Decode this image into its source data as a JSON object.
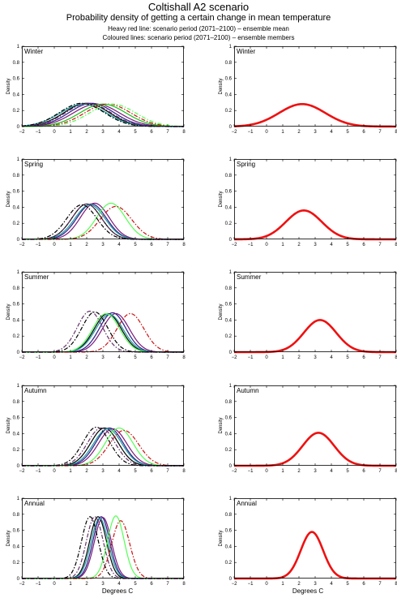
{
  "header": {
    "title": "Coltishall A2 scenario",
    "subtitle": "Probability density of getting a certain change in mean temperature",
    "note_red": "Heavy red line: scenario period (2071–2100) – ensemble mean",
    "note_coloured": "Coloured lines: scenario period (2071–2100) – ensemble members"
  },
  "colors": {
    "mean_line": "#ee1111",
    "members": [
      "#000000",
      "#2b1a8a",
      "#7a1a7a",
      "#18c018",
      "#55ff55",
      "#cc1111",
      "#1a9a9a",
      "#66336a"
    ]
  },
  "axes": {
    "xlabel": "Degrees C",
    "ylabel": "Density",
    "x_ticks": [
      "−2",
      "−1",
      "0",
      "1",
      "2",
      "3",
      "4",
      "5",
      "6",
      "7",
      "8"
    ],
    "y_ticks": [
      "0",
      "0.2",
      "0.4",
      "0.6",
      "0.8",
      "1"
    ]
  },
  "chart_data": [
    {
      "type": "line",
      "season": "Winter",
      "panel": "ensemble members",
      "xlim": [
        -2,
        8
      ],
      "ylim": [
        0,
        1
      ],
      "series": [
        {
          "style": "solid",
          "color": "#000000",
          "mean": 2.0,
          "peak": 0.29
        },
        {
          "style": "solid",
          "color": "#2b1a8a",
          "mean": 2.3,
          "peak": 0.29
        },
        {
          "style": "solid",
          "color": "#7a1a7a",
          "mean": 2.6,
          "peak": 0.28
        },
        {
          "style": "solid",
          "color": "#18c018",
          "mean": 3.0,
          "peak": 0.28
        },
        {
          "style": "solid",
          "color": "#1a9a9a",
          "mean": 1.8,
          "peak": 0.28
        },
        {
          "style": "dashdot",
          "color": "#cc1111",
          "mean": 3.3,
          "peak": 0.28
        },
        {
          "style": "dashdot",
          "color": "#55ff55",
          "mean": 3.6,
          "peak": 0.28
        },
        {
          "style": "dashdot",
          "color": "#000000",
          "mean": 1.7,
          "peak": 0.29
        },
        {
          "style": "dashdot",
          "color": "#66336a",
          "mean": 2.1,
          "peak": 0.29
        }
      ]
    },
    {
      "type": "line",
      "season": "Winter",
      "panel": "ensemble mean",
      "xlim": [
        -2,
        8
      ],
      "ylim": [
        0,
        1
      ],
      "series": [
        {
          "style": "heavy",
          "color": "#ee1111",
          "mean": 2.2,
          "peak": 0.28
        }
      ]
    },
    {
      "type": "line",
      "season": "Spring",
      "panel": "ensemble members",
      "xlim": [
        -2,
        8
      ],
      "ylim": [
        0,
        1
      ],
      "series": [
        {
          "style": "solid",
          "color": "#000000",
          "mean": 2.0,
          "peak": 0.44
        },
        {
          "style": "solid",
          "color": "#2b1a8a",
          "mean": 2.3,
          "peak": 0.44
        },
        {
          "style": "solid",
          "color": "#7a1a7a",
          "mean": 2.5,
          "peak": 0.45
        },
        {
          "style": "solid",
          "color": "#1a9a9a",
          "mean": 2.2,
          "peak": 0.43
        },
        {
          "style": "solid",
          "color": "#55ff55",
          "mean": 3.5,
          "peak": 0.45
        },
        {
          "style": "dashdot",
          "color": "#cc1111",
          "mean": 3.8,
          "peak": 0.41
        },
        {
          "style": "dashdot",
          "color": "#000000",
          "mean": 1.7,
          "peak": 0.43
        },
        {
          "style": "dashdot",
          "color": "#66336a",
          "mean": 2.0,
          "peak": 0.44
        }
      ]
    },
    {
      "type": "line",
      "season": "Spring",
      "panel": "ensemble mean",
      "xlim": [
        -2,
        8
      ],
      "ylim": [
        0,
        1
      ],
      "series": [
        {
          "style": "heavy",
          "color": "#ee1111",
          "mean": 2.3,
          "peak": 0.36
        }
      ]
    },
    {
      "type": "line",
      "season": "Summer",
      "panel": "ensemble members",
      "xlim": [
        -2,
        8
      ],
      "ylim": [
        0,
        1
      ],
      "series": [
        {
          "style": "solid",
          "color": "#000000",
          "mean": 3.3,
          "peak": 0.48
        },
        {
          "style": "solid",
          "color": "#2b1a8a",
          "mean": 3.6,
          "peak": 0.49
        },
        {
          "style": "solid",
          "color": "#7a1a7a",
          "mean": 3.8,
          "peak": 0.48
        },
        {
          "style": "solid",
          "color": "#1a9a9a",
          "mean": 3.4,
          "peak": 0.47
        },
        {
          "style": "solid",
          "color": "#55ff55",
          "mean": 3.2,
          "peak": 0.48
        },
        {
          "style": "dashdot",
          "color": "#cc1111",
          "mean": 4.7,
          "peak": 0.48
        },
        {
          "style": "dashdot",
          "color": "#000000",
          "mean": 2.5,
          "peak": 0.5
        },
        {
          "style": "dashdot",
          "color": "#66336a",
          "mean": 2.2,
          "peak": 0.51
        }
      ]
    },
    {
      "type": "line",
      "season": "Summer",
      "panel": "ensemble mean",
      "xlim": [
        -2,
        8
      ],
      "ylim": [
        0,
        1
      ],
      "series": [
        {
          "style": "heavy",
          "color": "#ee1111",
          "mean": 3.3,
          "peak": 0.4
        }
      ]
    },
    {
      "type": "line",
      "season": "Autumn",
      "panel": "ensemble members",
      "xlim": [
        -2,
        8
      ],
      "ylim": [
        0,
        1
      ],
      "series": [
        {
          "style": "solid",
          "color": "#000000",
          "mean": 3.1,
          "peak": 0.47
        },
        {
          "style": "solid",
          "color": "#2b1a8a",
          "mean": 3.4,
          "peak": 0.47
        },
        {
          "style": "solid",
          "color": "#7a1a7a",
          "mean": 3.6,
          "peak": 0.46
        },
        {
          "style": "solid",
          "color": "#1a9a9a",
          "mean": 3.3,
          "peak": 0.46
        },
        {
          "style": "solid",
          "color": "#55ff55",
          "mean": 4.0,
          "peak": 0.47
        },
        {
          "style": "dashdot",
          "color": "#cc1111",
          "mean": 4.3,
          "peak": 0.44
        },
        {
          "style": "dashdot",
          "color": "#000000",
          "mean": 2.6,
          "peak": 0.48
        },
        {
          "style": "dashdot",
          "color": "#66336a",
          "mean": 2.9,
          "peak": 0.47
        }
      ]
    },
    {
      "type": "line",
      "season": "Autumn",
      "panel": "ensemble mean",
      "xlim": [
        -2,
        8
      ],
      "ylim": [
        0,
        1
      ],
      "series": [
        {
          "style": "heavy",
          "color": "#ee1111",
          "mean": 3.2,
          "peak": 0.41
        }
      ]
    },
    {
      "type": "line",
      "season": "Annual",
      "panel": "ensemble members",
      "xlim": [
        -2,
        8
      ],
      "ylim": [
        0,
        1
      ],
      "series": [
        {
          "style": "solid",
          "color": "#000000",
          "mean": 2.7,
          "peak": 0.77
        },
        {
          "style": "solid",
          "color": "#2b1a8a",
          "mean": 2.9,
          "peak": 0.77
        },
        {
          "style": "solid",
          "color": "#7a1a7a",
          "mean": 3.0,
          "peak": 0.76
        },
        {
          "style": "solid",
          "color": "#1a9a9a",
          "mean": 2.8,
          "peak": 0.75
        },
        {
          "style": "solid",
          "color": "#55ff55",
          "mean": 3.8,
          "peak": 0.78
        },
        {
          "style": "dashdot",
          "color": "#cc1111",
          "mean": 4.1,
          "peak": 0.72
        },
        {
          "style": "dashdot",
          "color": "#000000",
          "mean": 2.2,
          "peak": 0.77
        },
        {
          "style": "dashdot",
          "color": "#66336a",
          "mean": 2.5,
          "peak": 0.77
        }
      ]
    },
    {
      "type": "line",
      "season": "Annual",
      "panel": "ensemble mean",
      "xlim": [
        -2,
        8
      ],
      "ylim": [
        0,
        1
      ],
      "series": [
        {
          "style": "heavy",
          "color": "#ee1111",
          "mean": 2.8,
          "peak": 0.58
        }
      ]
    }
  ]
}
